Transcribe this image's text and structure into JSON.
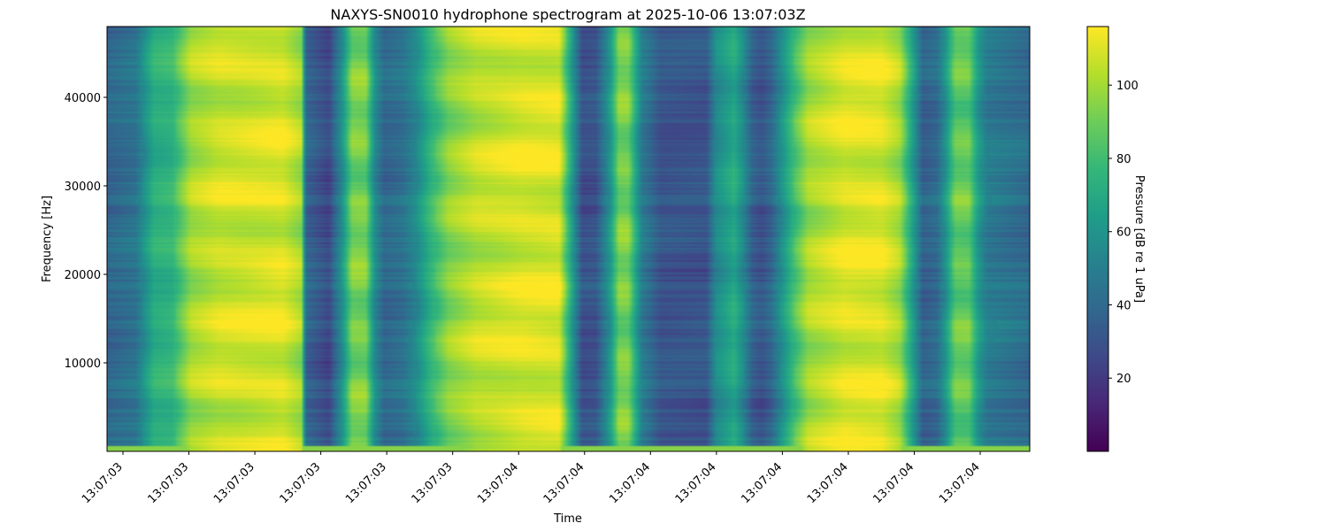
{
  "chart_data": {
    "type": "heatmap",
    "title": "NAXYS-SN0010 hydrophone spectrogram at 2025-10-06 13:07:03Z",
    "xlabel": "Time",
    "ylabel": "Frequency [Hz]",
    "colorbar_label": "Pressure [dB re 1 uPa]",
    "colormap": "viridis",
    "x_tick_labels": [
      "13:07:03",
      "13:07:03",
      "13:07:03",
      "13:07:03",
      "13:07:03",
      "13:07:03",
      "13:07:04",
      "13:07:04",
      "13:07:04",
      "13:07:04",
      "13:07:04",
      "13:07:04",
      "13:07:04",
      "13:07:04"
    ],
    "y_ticks": [
      10000,
      20000,
      30000,
      40000
    ],
    "y_tick_labels": [
      "10000",
      "20000",
      "30000",
      "40000"
    ],
    "ylim": [
      0,
      48000
    ],
    "colorbar_ticks": [
      20,
      40,
      60,
      80,
      100
    ],
    "colorbar_tick_labels": [
      "20",
      "40",
      "60",
      "80",
      "100"
    ],
    "color_range": [
      0,
      116
    ],
    "time_profile_db": [
      [
        0.0,
        38
      ],
      [
        0.03,
        44
      ],
      [
        0.05,
        72
      ],
      [
        0.07,
        75
      ],
      [
        0.09,
        100
      ],
      [
        0.12,
        107
      ],
      [
        0.15,
        108
      ],
      [
        0.19,
        110
      ],
      [
        0.21,
        100
      ],
      [
        0.215,
        38
      ],
      [
        0.24,
        25
      ],
      [
        0.255,
        60
      ],
      [
        0.265,
        92
      ],
      [
        0.28,
        92
      ],
      [
        0.29,
        55
      ],
      [
        0.3,
        38
      ],
      [
        0.32,
        43
      ],
      [
        0.335,
        55
      ],
      [
        0.35,
        75
      ],
      [
        0.37,
        95
      ],
      [
        0.4,
        105
      ],
      [
        0.45,
        110
      ],
      [
        0.49,
        110
      ],
      [
        0.505,
        60
      ],
      [
        0.515,
        28
      ],
      [
        0.53,
        30
      ],
      [
        0.545,
        60
      ],
      [
        0.555,
        92
      ],
      [
        0.565,
        92
      ],
      [
        0.58,
        48
      ],
      [
        0.6,
        30
      ],
      [
        0.65,
        30
      ],
      [
        0.66,
        55
      ],
      [
        0.68,
        70
      ],
      [
        0.69,
        55
      ],
      [
        0.7,
        35
      ],
      [
        0.71,
        30
      ],
      [
        0.72,
        38
      ],
      [
        0.73,
        55
      ],
      [
        0.745,
        80
      ],
      [
        0.76,
        100
      ],
      [
        0.8,
        110
      ],
      [
        0.84,
        110
      ],
      [
        0.86,
        100
      ],
      [
        0.875,
        62
      ],
      [
        0.885,
        35
      ],
      [
        0.9,
        40
      ],
      [
        0.91,
        60
      ],
      [
        0.92,
        88
      ],
      [
        0.935,
        88
      ],
      [
        0.945,
        62
      ],
      [
        0.955,
        48
      ],
      [
        1.0,
        40
      ]
    ]
  }
}
